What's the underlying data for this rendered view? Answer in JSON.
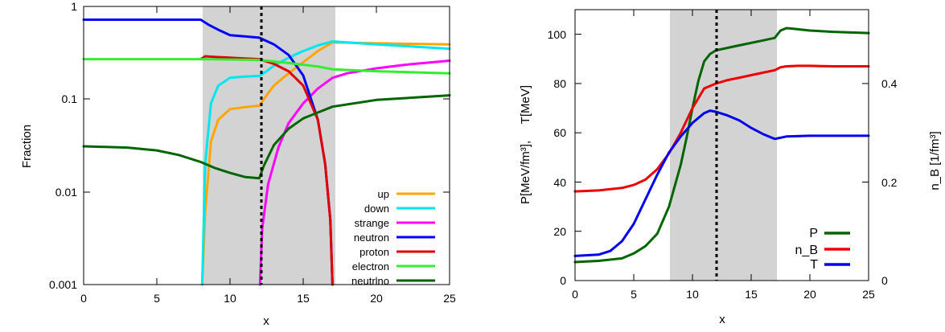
{
  "chart_data": [
    {
      "type": "line",
      "xlabel": "x",
      "ylabel": "Fraction",
      "xlim": [
        0,
        25
      ],
      "ylim": [
        0.001,
        1
      ],
      "yscale": "log",
      "xticks": [
        "0",
        "5",
        "10",
        "15",
        "20",
        "25"
      ],
      "yticks": [
        "0.001",
        "0.01",
        "0.1",
        "1"
      ],
      "shaded_region": [
        8,
        17
      ],
      "dashed_vline": 12,
      "legend_placement": "bottom-right",
      "series": [
        {
          "name": "up",
          "color": "#ffa500",
          "x": [
            8.1,
            8.3,
            8.7,
            9.2,
            10,
            11,
            12,
            12.5,
            13,
            14,
            15,
            16,
            17,
            20,
            25
          ],
          "y": [
            0.001,
            0.006,
            0.035,
            0.06,
            0.078,
            0.082,
            0.085,
            0.11,
            0.14,
            0.19,
            0.25,
            0.33,
            0.41,
            0.4,
            0.39
          ]
        },
        {
          "name": "down",
          "color": "#00e5ee",
          "x": [
            8.1,
            8.3,
            8.7,
            9.2,
            10,
            11,
            12,
            12.5,
            13,
            14,
            15,
            16,
            17,
            20,
            25
          ],
          "y": [
            0.001,
            0.02,
            0.09,
            0.14,
            0.17,
            0.175,
            0.178,
            0.2,
            0.23,
            0.28,
            0.33,
            0.38,
            0.42,
            0.39,
            0.35
          ]
        },
        {
          "name": "strange",
          "color": "#ff00ff",
          "x": [
            12.05,
            12.2,
            12.6,
            13.3,
            14,
            15,
            16,
            17,
            18,
            20,
            22,
            25
          ],
          "y": [
            0.001,
            0.004,
            0.012,
            0.03,
            0.055,
            0.09,
            0.13,
            0.17,
            0.19,
            0.215,
            0.235,
            0.26
          ]
        },
        {
          "name": "neutron",
          "color": "#0000ff",
          "x": [
            0,
            8,
            8.5,
            9.3,
            10,
            11,
            12,
            13,
            14,
            15,
            16,
            16.5,
            16.85,
            17
          ],
          "y": [
            0.72,
            0.72,
            0.64,
            0.55,
            0.49,
            0.475,
            0.46,
            0.39,
            0.3,
            0.18,
            0.06,
            0.02,
            0.005,
            0.001
          ]
        },
        {
          "name": "proton",
          "color": "#e00000",
          "x": [
            8,
            8.3,
            9,
            10,
            11,
            12,
            13,
            14,
            15,
            16,
            16.5,
            16.85,
            17
          ],
          "y": [
            0.27,
            0.29,
            0.285,
            0.28,
            0.275,
            0.27,
            0.24,
            0.2,
            0.14,
            0.06,
            0.02,
            0.005,
            0.001
          ]
        },
        {
          "name": "electron",
          "color": "#32ee32",
          "x": [
            0,
            5,
            8,
            12,
            14,
            16,
            17,
            20,
            25
          ],
          "y": [
            0.27,
            0.27,
            0.27,
            0.265,
            0.245,
            0.225,
            0.21,
            0.2,
            0.19
          ]
        },
        {
          "name": "neutrino",
          "color": "#006400",
          "x": [
            0,
            3,
            5,
            6.5,
            8,
            9,
            10,
            11,
            12,
            12.3,
            13,
            14,
            15,
            17,
            20,
            25
          ],
          "y": [
            0.031,
            0.03,
            0.028,
            0.025,
            0.021,
            0.018,
            0.016,
            0.0145,
            0.014,
            0.019,
            0.032,
            0.048,
            0.062,
            0.083,
            0.098,
            0.11
          ]
        }
      ]
    },
    {
      "type": "line",
      "xlabel": "x",
      "ylabel": "P[MeV/fm³],     T[MeV]",
      "y2label": "n_B [1/fm³]",
      "xlim": [
        0,
        25
      ],
      "ylim": [
        0,
        110
      ],
      "y2lim": [
        0,
        0.55
      ],
      "xticks": [
        "0",
        "5",
        "10",
        "15",
        "20",
        "25"
      ],
      "yticks": [
        "0",
        "20",
        "40",
        "60",
        "80",
        "100"
      ],
      "y2ticks": [
        "0",
        "0.2",
        "0.4"
      ],
      "shaded_region": [
        8,
        17
      ],
      "dashed_vline": 12,
      "legend_placement": "bottom-right",
      "series": [
        {
          "name": "P",
          "color": "#006400",
          "axis": "left",
          "x": [
            0,
            2,
            4,
            5,
            6,
            7,
            8,
            9,
            9.5,
            10,
            10.5,
            11,
            11.5,
            12,
            13,
            14,
            15,
            16,
            17,
            17.5,
            18,
            18.5,
            20,
            22,
            25
          ],
          "y": [
            7.5,
            8,
            9,
            11,
            14,
            19,
            30,
            47,
            58,
            70,
            81,
            89,
            92,
            93.5,
            94.5,
            95.5,
            96.5,
            97.5,
            98.5,
            101.5,
            102.5,
            102.3,
            101.5,
            101,
            100.5
          ]
        },
        {
          "name": "n_B",
          "color": "#ee0000",
          "axis": "right",
          "x": [
            0,
            2,
            4,
            5,
            6,
            7,
            8,
            9,
            10,
            11,
            12,
            13,
            14,
            15,
            16,
            17,
            17.5,
            18,
            19,
            20,
            22,
            25
          ],
          "y": [
            0.181,
            0.183,
            0.188,
            0.194,
            0.205,
            0.226,
            0.258,
            0.3,
            0.35,
            0.39,
            0.4,
            0.407,
            0.412,
            0.417,
            0.422,
            0.427,
            0.433,
            0.435,
            0.436,
            0.436,
            0.435,
            0.435
          ]
        },
        {
          "name": "T",
          "color": "#0000ee",
          "axis": "left",
          "x": [
            0,
            2,
            3,
            4,
            5,
            6,
            7,
            8,
            9,
            10,
            11,
            11.5,
            12,
            13,
            14,
            15,
            16,
            17,
            17.5,
            18,
            20,
            25
          ],
          "y": [
            10,
            10.5,
            12,
            16,
            23,
            33,
            43,
            52,
            58.5,
            64,
            68,
            69,
            68.5,
            67,
            65,
            62,
            59.5,
            57.5,
            58,
            58.5,
            58.8,
            58.8
          ]
        }
      ]
    }
  ]
}
